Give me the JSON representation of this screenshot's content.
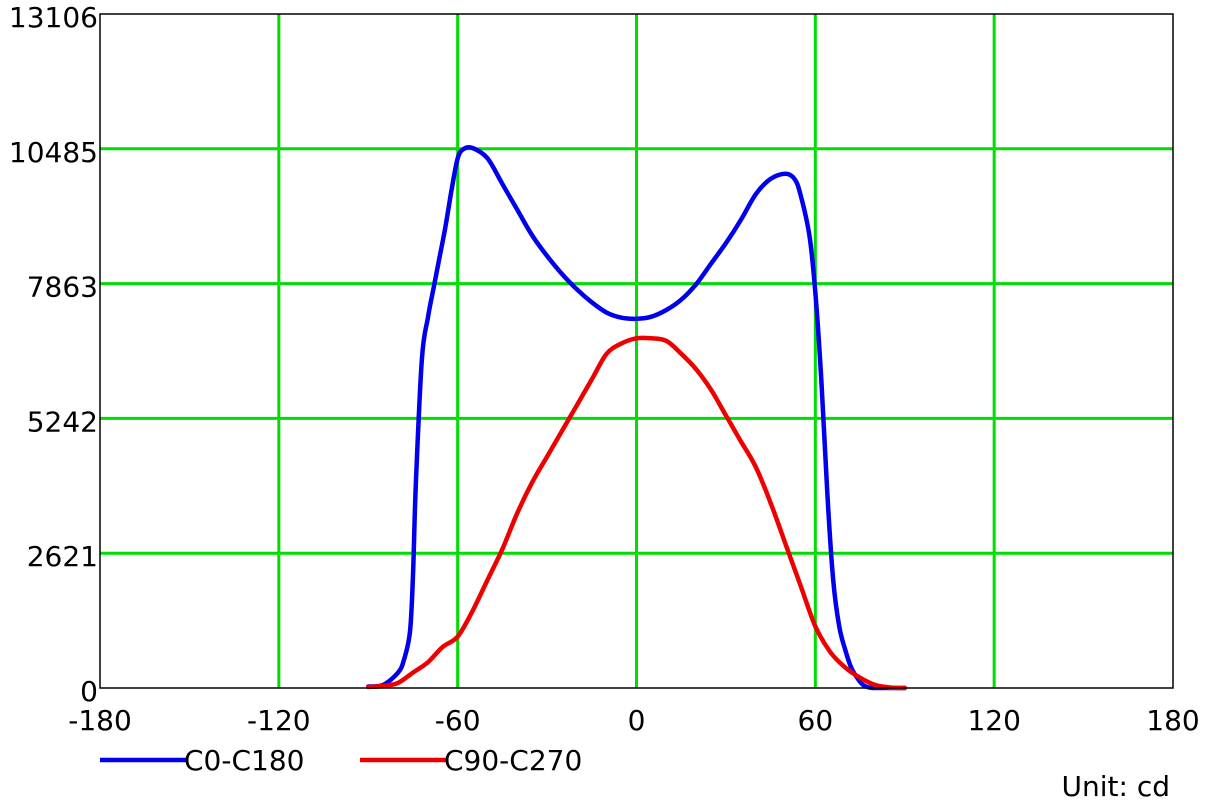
{
  "chart_data": {
    "type": "line",
    "xlim": [
      -180,
      180
    ],
    "ylim": [
      0,
      13106
    ],
    "x_ticks": [
      "-180",
      "-120",
      "-60",
      "0",
      "60",
      "120",
      "180"
    ],
    "y_ticks": [
      "0",
      "2621",
      "5242",
      "7863",
      "10485",
      "13106"
    ],
    "grid": true,
    "grid_color": "#00dd00",
    "legend_position": "bottom",
    "unit_label": "Unit: cd",
    "series": [
      {
        "name": "C0-C180",
        "color": "#0000ee",
        "x": [
          -90,
          -85,
          -80,
          -78,
          -76,
          -75,
          -74,
          -72,
          -70,
          -68,
          -66,
          -64,
          -62,
          -60,
          -58,
          -55,
          -50,
          -45,
          -40,
          -35,
          -30,
          -25,
          -20,
          -15,
          -10,
          -5,
          0,
          5,
          10,
          15,
          20,
          25,
          30,
          35,
          40,
          45,
          50,
          53,
          55,
          58,
          60,
          62,
          64,
          66,
          68,
          70,
          72,
          74,
          76,
          78,
          80,
          82,
          85,
          88,
          90
        ],
        "values": [
          30,
          60,
          300,
          550,
          1100,
          2200,
          4000,
          6400,
          7200,
          7800,
          8400,
          9000,
          9700,
          10300,
          10480,
          10500,
          10300,
          9800,
          9300,
          8800,
          8400,
          8050,
          7750,
          7500,
          7300,
          7200,
          7180,
          7220,
          7350,
          7550,
          7850,
          8250,
          8650,
          9100,
          9600,
          9900,
          10000,
          9900,
          9600,
          8800,
          7700,
          6000,
          3800,
          2100,
          1200,
          750,
          400,
          200,
          60,
          10,
          0,
          0,
          0,
          0,
          0
        ]
      },
      {
        "name": "C90-C270",
        "color": "#ee0000",
        "x": [
          -90,
          -85,
          -80,
          -75,
          -70,
          -65,
          -60,
          -55,
          -50,
          -45,
          -40,
          -35,
          -30,
          -25,
          -20,
          -15,
          -10,
          -5,
          0,
          5,
          10,
          15,
          20,
          25,
          30,
          35,
          40,
          45,
          50,
          55,
          60,
          65,
          70,
          75,
          80,
          85,
          88,
          90
        ],
        "values": [
          20,
          40,
          100,
          300,
          500,
          800,
          1000,
          1500,
          2100,
          2700,
          3400,
          4000,
          4500,
          5000,
          5500,
          6000,
          6500,
          6700,
          6800,
          6800,
          6750,
          6500,
          6200,
          5800,
          5300,
          4800,
          4300,
          3600,
          2800,
          2000,
          1200,
          700,
          400,
          200,
          60,
          10,
          0,
          0
        ]
      }
    ]
  }
}
